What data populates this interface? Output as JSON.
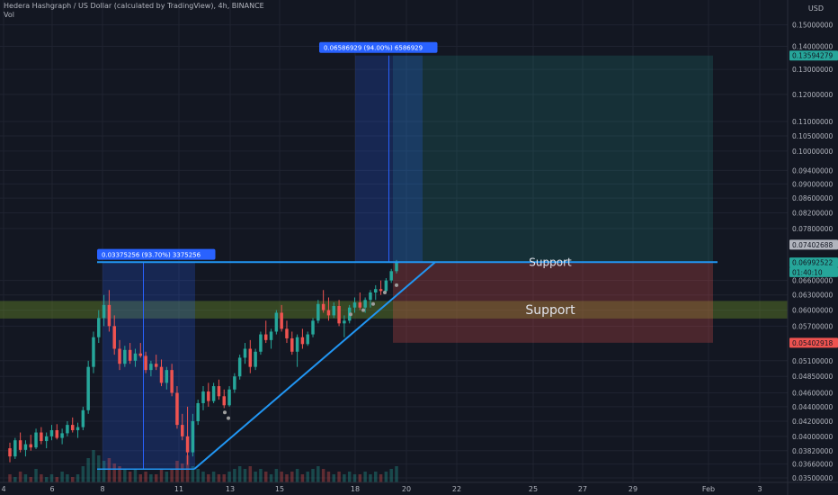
{
  "header": {
    "title": "Hedera Hashgraph / US Dollar (calculated by TradingView), 4h, BINANCE",
    "volume_label": "Vol",
    "currency": "USD"
  },
  "chart_data": {
    "type": "candlestick",
    "symbol": "HBAR/USD",
    "timeframe": "4h",
    "y_scale": "log",
    "ylim": [
      0.0345,
      0.1625
    ],
    "price_ticks": [
      "0.15000000",
      "0.14000000",
      "0.13000000",
      "0.12000000",
      "0.11000000",
      "0.10500000",
      "0.10000000",
      "0.09400000",
      "0.09000000",
      "0.08600000",
      "0.08200000",
      "0.07800000",
      "0.06600000",
      "0.06300000",
      "0.06000000",
      "0.05700000",
      "0.05100000",
      "0.04850000",
      "0.04600000",
      "0.04400000",
      "0.04200000",
      "0.04000000",
      "0.03820000",
      "0.03660000",
      "0.03500000"
    ],
    "x_ticks": [
      "4",
      "6",
      "8",
      "11",
      "13",
      "15",
      "18",
      "20",
      "22",
      "25",
      "27",
      "29",
      "Feb",
      "3"
    ],
    "price_labels": [
      {
        "text": "0.13594279",
        "price": 0.13594,
        "color": "#26a69a"
      },
      {
        "text": "0.07402688",
        "price": 0.07403,
        "color": "#b2b5be"
      },
      {
        "text": "0.06992522",
        "price": 0.06993,
        "color": "#26a69a"
      },
      {
        "text": "01:40:10",
        "price": 0.0678,
        "color": "#26a69a"
      },
      {
        "text": "0.05402918",
        "price": 0.05403,
        "color": "#ef5350"
      }
    ],
    "measure_boxes": [
      {
        "label": "0.03375256 (93.70%) 3375256",
        "from_date": "Jan 8",
        "to_date": "Jan 11",
        "low": 0.036,
        "high": 0.06993
      },
      {
        "label": "0.06586929 (94.00%) 6586929",
        "from_date": "Jan 18",
        "to_date": "Jan 20",
        "low": 0.06993,
        "high": 0.13594
      }
    ],
    "position": {
      "entry": 0.06993,
      "target": 0.13594,
      "stop": 0.05403
    },
    "support_zones": [
      {
        "label": "Support",
        "price": 0.07
      },
      {
        "label": "Support",
        "low": 0.0584,
        "high": 0.0618
      }
    ],
    "trendlines": [
      {
        "name": "ascending support",
        "from": [
          "Jan 11",
          0.036
        ],
        "to": [
          "Jan 21",
          0.07
        ]
      },
      {
        "name": "horizontal resistance",
        "from": [
          "Jan 8",
          0.07
        ],
        "to": [
          "Feb 1",
          0.07
        ]
      }
    ],
    "candles": [
      [
        0.0385,
        0.0392,
        0.0368,
        0.0375
      ],
      [
        0.0375,
        0.0398,
        0.0372,
        0.0395
      ],
      [
        0.0395,
        0.0405,
        0.038,
        0.0383
      ],
      [
        0.0383,
        0.0395,
        0.0375,
        0.039
      ],
      [
        0.039,
        0.0402,
        0.0382,
        0.0386
      ],
      [
        0.0386,
        0.041,
        0.0384,
        0.0405
      ],
      [
        0.0405,
        0.0412,
        0.039,
        0.0394
      ],
      [
        0.0394,
        0.0405,
        0.0385,
        0.04
      ],
      [
        0.04,
        0.0415,
        0.0395,
        0.0408
      ],
      [
        0.0408,
        0.0416,
        0.0396,
        0.0398
      ],
      [
        0.0398,
        0.041,
        0.039,
        0.0404
      ],
      [
        0.0404,
        0.042,
        0.04,
        0.0415
      ],
      [
        0.0415,
        0.0425,
        0.0405,
        0.0408
      ],
      [
        0.0408,
        0.0418,
        0.0398,
        0.0412
      ],
      [
        0.0412,
        0.044,
        0.0408,
        0.0435
      ],
      [
        0.0435,
        0.051,
        0.043,
        0.05
      ],
      [
        0.05,
        0.056,
        0.049,
        0.055
      ],
      [
        0.055,
        0.06,
        0.054,
        0.0585
      ],
      [
        0.0585,
        0.063,
        0.057,
        0.061
      ],
      [
        0.061,
        0.064,
        0.056,
        0.057
      ],
      [
        0.057,
        0.059,
        0.052,
        0.053
      ],
      [
        0.053,
        0.0545,
        0.0495,
        0.0505
      ],
      [
        0.0505,
        0.0535,
        0.05,
        0.0528
      ],
      [
        0.0528,
        0.054,
        0.0505,
        0.051
      ],
      [
        0.051,
        0.053,
        0.05,
        0.0522
      ],
      [
        0.0522,
        0.054,
        0.0515,
        0.0518
      ],
      [
        0.0518,
        0.0525,
        0.049,
        0.0495
      ],
      [
        0.0495,
        0.051,
        0.0485,
        0.0505
      ],
      [
        0.0505,
        0.052,
        0.0495,
        0.05
      ],
      [
        0.05,
        0.0512,
        0.047,
        0.0475
      ],
      [
        0.0475,
        0.05,
        0.0465,
        0.0495
      ],
      [
        0.0495,
        0.0505,
        0.0455,
        0.046
      ],
      [
        0.046,
        0.047,
        0.041,
        0.0415
      ],
      [
        0.0415,
        0.043,
        0.0395,
        0.04
      ],
      [
        0.04,
        0.044,
        0.0365,
        0.038
      ],
      [
        0.038,
        0.043,
        0.0375,
        0.042
      ],
      [
        0.042,
        0.045,
        0.0415,
        0.0445
      ],
      [
        0.0445,
        0.047,
        0.0435,
        0.0462
      ],
      [
        0.0462,
        0.0475,
        0.044,
        0.0448
      ],
      [
        0.0448,
        0.0475,
        0.0445,
        0.047
      ],
      [
        0.047,
        0.048,
        0.045,
        0.0455
      ],
      [
        0.0455,
        0.0465,
        0.0438,
        0.0442
      ],
      [
        0.0442,
        0.047,
        0.044,
        0.0465
      ],
      [
        0.0465,
        0.049,
        0.046,
        0.0485
      ],
      [
        0.0485,
        0.052,
        0.048,
        0.0515
      ],
      [
        0.0515,
        0.054,
        0.0505,
        0.053
      ],
      [
        0.053,
        0.0545,
        0.049,
        0.05
      ],
      [
        0.05,
        0.053,
        0.0495,
        0.0525
      ],
      [
        0.0525,
        0.056,
        0.052,
        0.0555
      ],
      [
        0.0555,
        0.058,
        0.054,
        0.0545
      ],
      [
        0.0545,
        0.0565,
        0.053,
        0.056
      ],
      [
        0.056,
        0.06,
        0.0555,
        0.0595
      ],
      [
        0.0595,
        0.061,
        0.056,
        0.0565
      ],
      [
        0.0565,
        0.058,
        0.054,
        0.0548
      ],
      [
        0.0548,
        0.056,
        0.052,
        0.0525
      ],
      [
        0.0525,
        0.0555,
        0.05,
        0.055
      ],
      [
        0.055,
        0.0565,
        0.053,
        0.0538
      ],
      [
        0.0538,
        0.056,
        0.0535,
        0.0555
      ],
      [
        0.0555,
        0.0585,
        0.055,
        0.058
      ],
      [
        0.058,
        0.062,
        0.0575,
        0.0612
      ],
      [
        0.0612,
        0.064,
        0.0595,
        0.06
      ],
      [
        0.06,
        0.0625,
        0.058,
        0.059
      ],
      [
        0.059,
        0.0615,
        0.0585,
        0.0608
      ],
      [
        0.0608,
        0.062,
        0.057,
        0.0575
      ],
      [
        0.0575,
        0.059,
        0.055,
        0.058
      ],
      [
        0.058,
        0.061,
        0.0575,
        0.0605
      ],
      [
        0.0605,
        0.0625,
        0.0595,
        0.0615
      ],
      [
        0.0615,
        0.0635,
        0.06,
        0.0605
      ],
      [
        0.0605,
        0.0625,
        0.0595,
        0.062
      ],
      [
        0.062,
        0.064,
        0.0605,
        0.0635
      ],
      [
        0.0635,
        0.065,
        0.062,
        0.0642
      ],
      [
        0.0642,
        0.066,
        0.063,
        0.0638
      ],
      [
        0.0638,
        0.0665,
        0.0635,
        0.066
      ],
      [
        0.066,
        0.0685,
        0.0655,
        0.068
      ],
      [
        0.068,
        0.0705,
        0.0675,
        0.07
      ]
    ],
    "volumes": [
      3,
      2,
      4,
      3,
      2,
      5,
      3,
      2,
      3,
      2,
      4,
      3,
      2,
      3,
      6,
      9,
      12,
      10,
      8,
      9,
      7,
      6,
      5,
      4,
      5,
      3,
      4,
      3,
      3,
      5,
      4,
      5,
      8,
      7,
      10,
      6,
      5,
      4,
      3,
      4,
      3,
      3,
      4,
      5,
      6,
      5,
      6,
      4,
      5,
      4,
      3,
      5,
      4,
      3,
      4,
      5,
      3,
      4,
      5,
      6,
      5,
      4,
      3,
      4,
      3,
      4,
      3,
      3,
      4,
      3,
      4,
      3,
      4,
      5,
      6
    ]
  }
}
